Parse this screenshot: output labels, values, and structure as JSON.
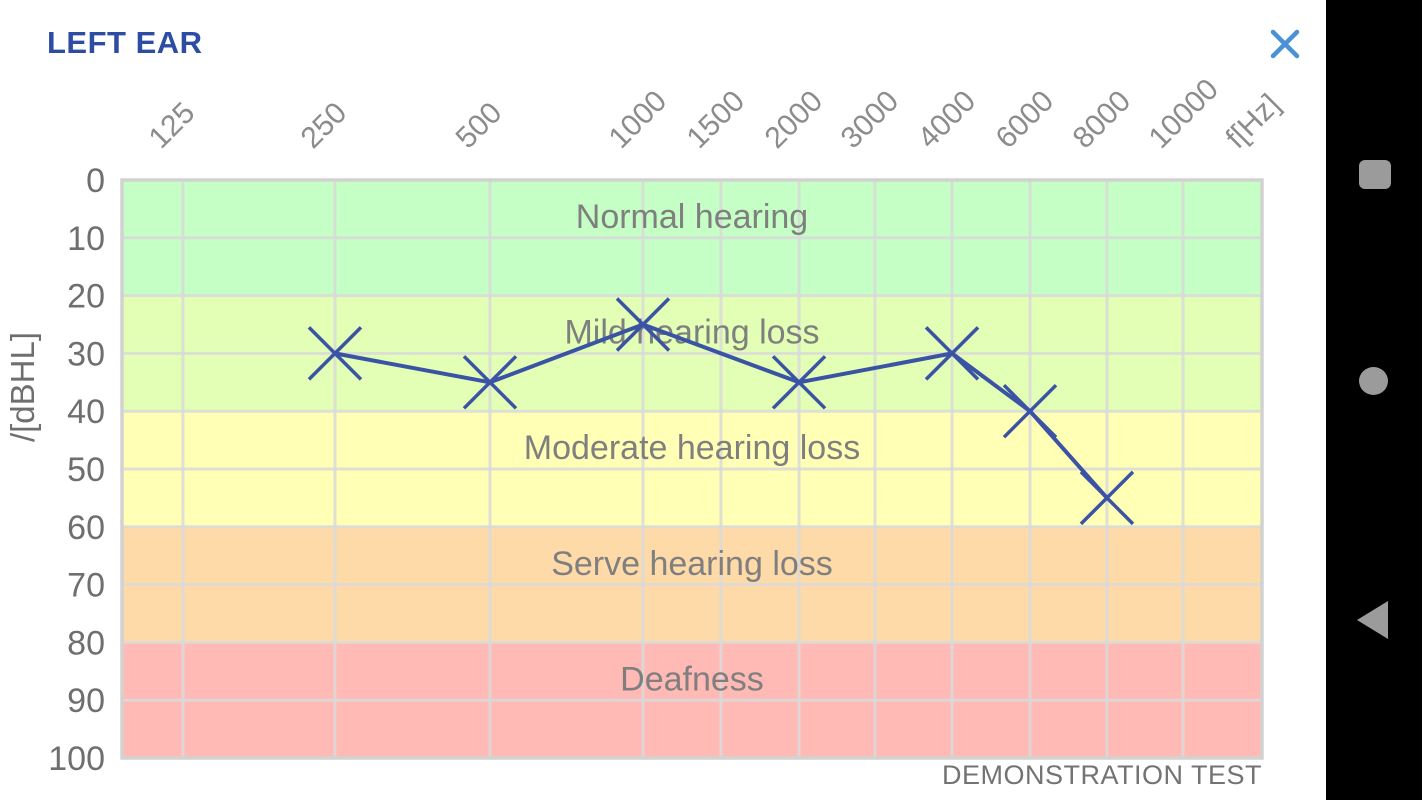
{
  "header": {
    "title": "LEFT EAR"
  },
  "chart_data": {
    "type": "line",
    "title": "",
    "x_axis": {
      "unit_label": "f[Hz]",
      "ticks": [
        125,
        250,
        500,
        1000,
        1500,
        2000,
        3000,
        4000,
        6000,
        8000,
        10000
      ],
      "scale": "audiogram-log"
    },
    "y_axis": {
      "label": "/[dBHL]",
      "ticks": [
        0,
        10,
        20,
        30,
        40,
        50,
        60,
        70,
        80,
        90,
        100
      ],
      "range": [
        0,
        100
      ],
      "direction": "down"
    },
    "grid": true,
    "grid_color": "#dadada",
    "frame_color": "#d2d2d2",
    "bands": [
      {
        "label": "Normal hearing",
        "from": 0,
        "to": 20,
        "color": "#c5ffc5"
      },
      {
        "label": "Mild hearing loss",
        "from": 20,
        "to": 40,
        "color": "#e2ffb5"
      },
      {
        "label": "Moderate hearing loss",
        "from": 40,
        "to": 60,
        "color": "#ffffb5"
      },
      {
        "label": "Serve hearing loss",
        "from": 60,
        "to": 80,
        "color": "#ffdaa9"
      },
      {
        "label": "Deafness",
        "from": 80,
        "to": 100,
        "color": "#ffbab5"
      }
    ],
    "series": [
      {
        "name": "left-ear-threshold",
        "marker": "x",
        "color": "#3a53a4",
        "points": [
          {
            "f": 250,
            "db": 30
          },
          {
            "f": 500,
            "db": 35
          },
          {
            "f": 1000,
            "db": 25
          },
          {
            "f": 2000,
            "db": 35
          },
          {
            "f": 4000,
            "db": 30
          },
          {
            "f": 6000,
            "db": 40
          },
          {
            "f": 8000,
            "db": 55
          }
        ]
      }
    ],
    "annotation": "DEMONSTRATION TEST",
    "band_label_color": "#7f7f7f",
    "x_label_color": "#8c8c8c",
    "y_label_color": "#6f6f6f"
  },
  "colors": {
    "title_blue": "#2d4da3",
    "close_icon_blue": "#4a91d6",
    "nav_background": "#000000",
    "nav_icon_gray": "#9b9b9b"
  },
  "nav_bar": {
    "icons": [
      "recents-square",
      "home-circle",
      "back-triangle"
    ]
  }
}
